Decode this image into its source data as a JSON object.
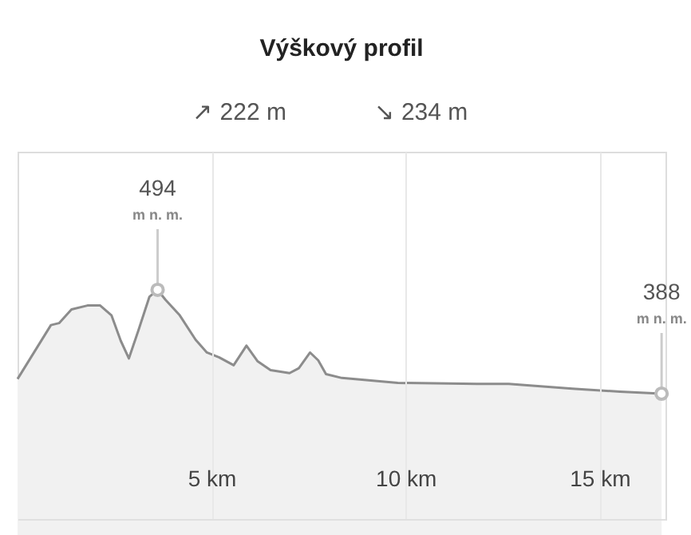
{
  "chart_data": {
    "type": "area",
    "title": "Výškový profil",
    "annotations": [
      "m n. m.",
      "m n. m.",
      "↗ 222 m",
      "↘ 234 m"
    ],
    "x": [
      0,
      0.86,
      1.07,
      1.39,
      1.8,
      2.13,
      2.42,
      2.66,
      2.87,
      3.11,
      3.4,
      3.61,
      3.81,
      4.18,
      4.59,
      4.88,
      5.2,
      5.57,
      5.9,
      6.19,
      6.52,
      7.01,
      7.25,
      7.54,
      7.75,
      7.95,
      8.36,
      9.8,
      11.84,
      12.66,
      14.3,
      15.53,
      16.6
    ],
    "series": [
      {
        "color": "#8c8c8c",
        "values": [
          403,
          458,
          460,
          474,
          478,
          478,
          468,
          442,
          424,
          452,
          487,
          494,
          484,
          468,
          443,
          430,
          425,
          417,
          437,
          421,
          412,
          409,
          414,
          430,
          422,
          408,
          404,
          399,
          398,
          398,
          393,
          390,
          388
        ],
        "value_labels": [
          null,
          null,
          null,
          null,
          null,
          null,
          null,
          null,
          null,
          null,
          null,
          "494",
          null,
          null,
          null,
          null,
          null,
          null,
          null,
          null,
          null,
          null,
          null,
          null,
          null,
          null,
          null,
          null,
          null,
          null,
          null,
          null,
          "388"
        ]
      }
    ],
    "xlim": [
      0,
      16.7
    ],
    "ylim": [
      260,
      635
    ],
    "xticks": [
      {
        "value": 5,
        "label": "5 km"
      },
      {
        "value": 10,
        "label": "10 km"
      },
      {
        "value": 15,
        "label": "15 km"
      }
    ],
    "tick_labels": "x",
    "grid": "x",
    "marker": "none"
  }
}
